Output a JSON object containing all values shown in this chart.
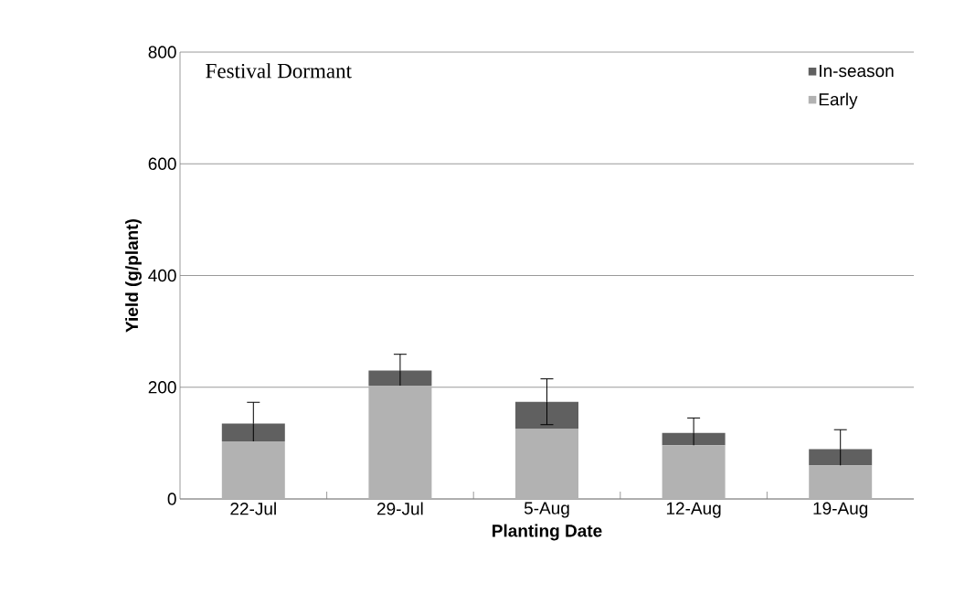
{
  "chart_data": {
    "type": "bar",
    "title": "Festival Dormant",
    "xlabel": "Planting Date",
    "ylabel": "Yield (g/plant)",
    "categories": [
      "22-Jul",
      "29-Jul",
      "5-Aug",
      "12-Aug",
      "19-Aug"
    ],
    "stacked": true,
    "series": [
      {
        "name": "Early",
        "color": "#b2b2b2",
        "values": [
          103,
          203,
          125,
          96,
          60
        ]
      },
      {
        "name": "In-season",
        "color": "#606060",
        "values": [
          32,
          27,
          49,
          22,
          29
        ],
        "errors": [
          38,
          29,
          41,
          27,
          35
        ]
      }
    ],
    "ylim": [
      0,
      800
    ],
    "yticks": [
      0,
      200,
      400,
      600,
      800
    ],
    "grid": "y",
    "legend": "top right"
  }
}
